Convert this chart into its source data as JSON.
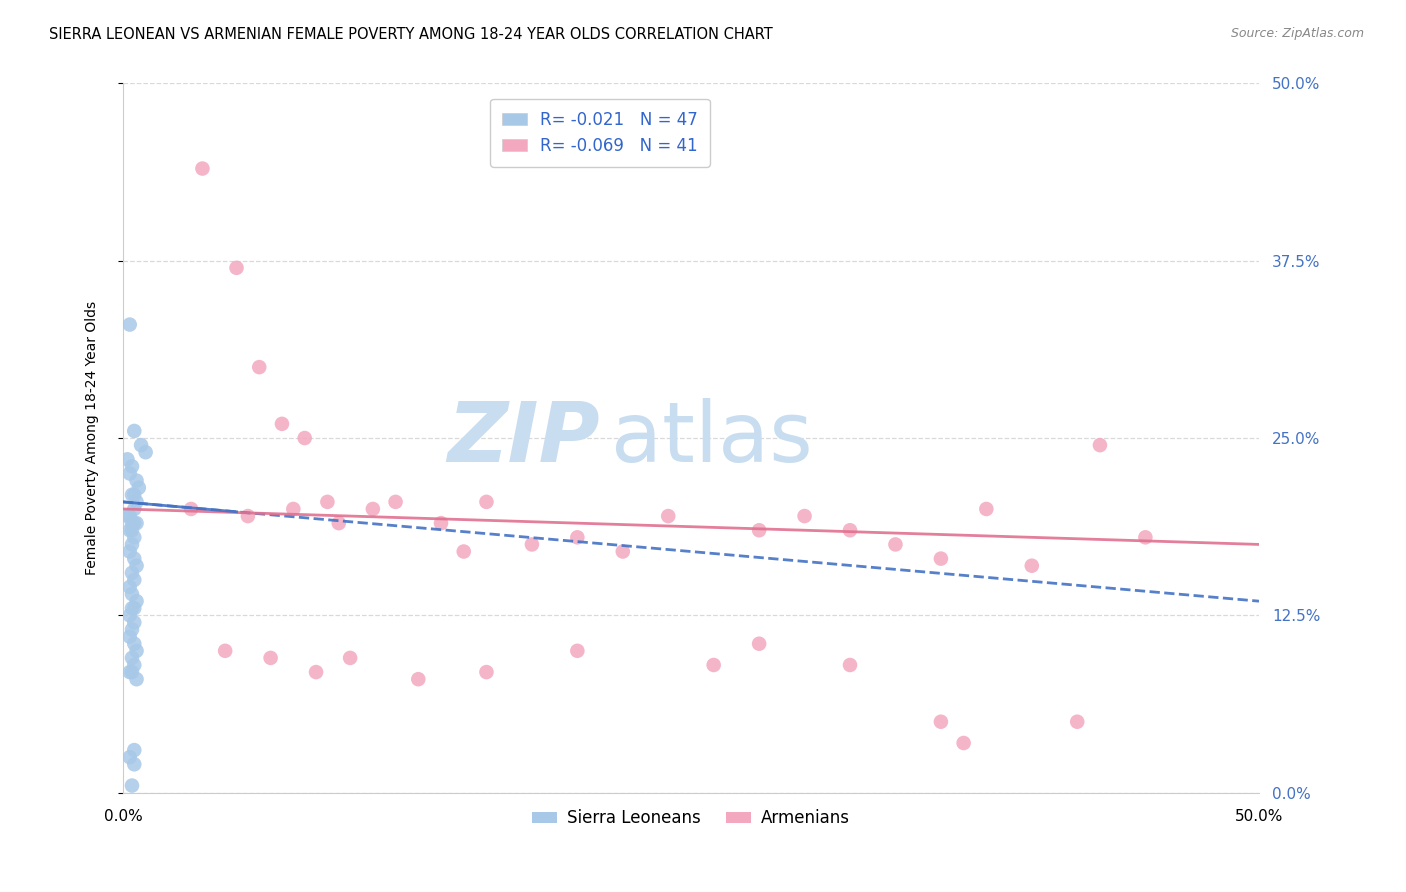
{
  "title": "SIERRA LEONEAN VS ARMENIAN FEMALE POVERTY AMONG 18-24 YEAR OLDS CORRELATION CHART",
  "source": "Source: ZipAtlas.com",
  "ylabel": "Female Poverty Among 18-24 Year Olds",
  "ytick_labels": [
    "0.0%",
    "12.5%",
    "25.0%",
    "37.5%",
    "50.0%"
  ],
  "ytick_values": [
    0,
    12.5,
    25.0,
    37.5,
    50.0
  ],
  "xtick_labels": [
    "0.0%",
    "50.0%"
  ],
  "xtick_values": [
    0,
    50
  ],
  "xlim": [
    0,
    50
  ],
  "ylim": [
    0,
    50
  ],
  "sierra_R": -0.021,
  "sierra_N": 47,
  "armenian_R": -0.069,
  "armenian_N": 41,
  "sierra_x": [
    0.3,
    0.5,
    0.8,
    1.0,
    0.2,
    0.4,
    0.3,
    0.6,
    0.7,
    0.5,
    0.4,
    0.6,
    0.5,
    0.3,
    0.4,
    0.2,
    0.5,
    0.6,
    0.4,
    0.3,
    0.5,
    0.4,
    0.3,
    0.5,
    0.6,
    0.4,
    0.5,
    0.3,
    0.4,
    0.6,
    0.5,
    0.4,
    0.3,
    0.5,
    0.4,
    0.3,
    0.5,
    0.6,
    0.4,
    0.5,
    0.3,
    0.4,
    0.6,
    0.5,
    0.3,
    0.5,
    0.4
  ],
  "sierra_y": [
    33.0,
    25.5,
    24.5,
    24.0,
    23.5,
    23.0,
    22.5,
    22.0,
    21.5,
    21.0,
    21.0,
    20.5,
    20.0,
    19.5,
    19.0,
    19.5,
    19.0,
    19.0,
    18.5,
    18.5,
    18.0,
    17.5,
    17.0,
    16.5,
    16.0,
    15.5,
    15.0,
    14.5,
    14.0,
    13.5,
    13.0,
    13.0,
    12.5,
    12.0,
    11.5,
    11.0,
    10.5,
    10.0,
    9.5,
    9.0,
    8.5,
    8.5,
    8.0,
    3.0,
    2.5,
    2.0,
    0.5
  ],
  "armenian_x": [
    3.5,
    5.0,
    6.0,
    7.0,
    8.0,
    9.0,
    11.0,
    14.0,
    16.0,
    20.0,
    24.0,
    30.0,
    32.0,
    36.0,
    40.0,
    45.0,
    3.0,
    5.5,
    7.5,
    9.5,
    12.0,
    15.0,
    18.0,
    22.0,
    28.0,
    34.0,
    38.0,
    43.0,
    4.5,
    6.5,
    8.5,
    10.0,
    13.0,
    16.0,
    20.0,
    26.0,
    32.0,
    37.0,
    42.0,
    36.0,
    28.0
  ],
  "armenian_y": [
    44.0,
    37.0,
    30.0,
    26.0,
    25.0,
    20.5,
    20.0,
    19.0,
    20.5,
    18.0,
    19.5,
    19.5,
    18.5,
    16.5,
    16.0,
    18.0,
    20.0,
    19.5,
    20.0,
    19.0,
    20.5,
    17.0,
    17.5,
    17.0,
    18.5,
    17.5,
    20.0,
    24.5,
    10.0,
    9.5,
    8.5,
    9.5,
    8.0,
    8.5,
    10.0,
    9.0,
    9.0,
    3.5,
    5.0,
    5.0,
    10.5
  ],
  "sierra_color": "#a8c8e8",
  "armenian_color": "#f4a8c0",
  "sierra_line_color": "#4472c4",
  "armenian_line_color": "#e07090",
  "sierra_line_solid_end": 10,
  "background_color": "#ffffff",
  "grid_color": "#d0d0d0",
  "watermark_zip": "ZIP",
  "watermark_atlas": "atlas",
  "watermark_color_zip": "#c8ddf0",
  "watermark_color_atlas": "#c8ddf0",
  "right_tick_color": "#4472c4",
  "title_fontsize": 10.5,
  "source_fontsize": 9,
  "axis_label_fontsize": 10,
  "tick_fontsize": 11,
  "legend_fontsize": 12
}
